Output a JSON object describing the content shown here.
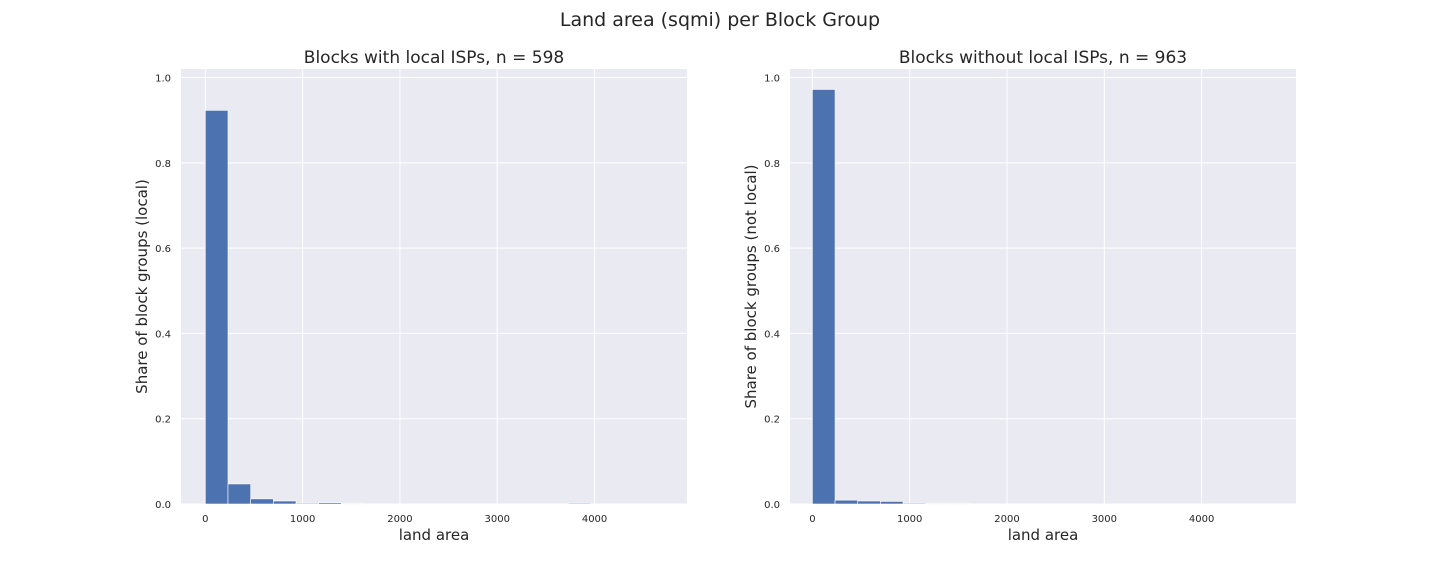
{
  "figure": {
    "suptitle": "Land area (sqmi) per Block Group"
  },
  "colors": {
    "plot_background": "#eaeaf2",
    "grid": "#ffffff",
    "bar": "#4c72b0"
  },
  "chart_data": [
    {
      "type": "bar",
      "title": "Blocks with local ISPs, n = 598",
      "xlabel": "land area",
      "ylabel": "Share of block groups (local)",
      "xlim": [
        -250,
        4950
      ],
      "ylim": [
        0,
        1.02
      ],
      "xticks": [
        0,
        1000,
        2000,
        3000,
        4000
      ],
      "yticks": [
        0.0,
        0.2,
        0.4,
        0.6,
        0.8,
        1.0
      ],
      "grid": true,
      "bin_width": 233,
      "bins_start": [
        0,
        233,
        466,
        699,
        932,
        1165,
        1398,
        1631,
        1864,
        2097,
        2330,
        2563,
        2796,
        3029,
        3262,
        3495,
        3728,
        3961,
        4194,
        4427
      ],
      "values": [
        0.923,
        0.047,
        0.012,
        0.007,
        0.002,
        0.003,
        0.001,
        0.0,
        0.0,
        0.0,
        0.0,
        0.0,
        0.0,
        0.0,
        0.0,
        0.0,
        0.002,
        0.0,
        0.0,
        0.0
      ]
    },
    {
      "type": "bar",
      "title": "Blocks without local ISPs, n = 963",
      "xlabel": "land area",
      "ylabel": "Share of block groups (not local)",
      "xlim": [
        -230,
        4970
      ],
      "ylim": [
        0,
        1.02
      ],
      "xticks": [
        0,
        1000,
        2000,
        3000,
        4000
      ],
      "yticks": [
        0.0,
        0.2,
        0.4,
        0.6,
        0.8,
        1.0
      ],
      "grid": true,
      "bin_width": 233,
      "bins_start": [
        0,
        233,
        466,
        699,
        932,
        1165,
        1398,
        1631,
        1864,
        2097,
        2330,
        2563,
        2796,
        3029,
        3262,
        3495,
        3728,
        3961,
        4194,
        4427
      ],
      "values": [
        0.972,
        0.009,
        0.007,
        0.006,
        0.002,
        0.001,
        0.001,
        0.0,
        0.0,
        0.0,
        0.0,
        0.0,
        0.0,
        0.0,
        0.0,
        0.0,
        0.0,
        0.0,
        0.0,
        0.0
      ]
    }
  ]
}
